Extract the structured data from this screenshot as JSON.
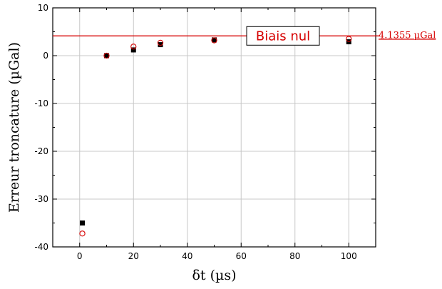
{
  "chart_data": {
    "type": "scatter",
    "title": "",
    "xlabel": "δt (µs)",
    "ylabel": "Erreur troncature (µGal)",
    "xlim": [
      -10,
      110
    ],
    "ylim": [
      -40,
      10
    ],
    "xticks": [
      0,
      20,
      40,
      60,
      80,
      100
    ],
    "yticks": [
      -40,
      -30,
      -20,
      -10,
      0,
      10
    ],
    "grid": true,
    "series": [
      {
        "marker": "filled-square",
        "color": "#000000",
        "points": [
          {
            "x": 1,
            "y": -35.0
          },
          {
            "x": 10,
            "y": 0.0
          },
          {
            "x": 20,
            "y": 1.2
          },
          {
            "x": 30,
            "y": 2.3
          },
          {
            "x": 50,
            "y": 3.3
          },
          {
            "x": 100,
            "y": 2.9
          }
        ]
      },
      {
        "marker": "open-circle",
        "color": "#d60000",
        "points": [
          {
            "x": 1,
            "y": -37.2
          },
          {
            "x": 10,
            "y": 0.0
          },
          {
            "x": 20,
            "y": 1.9
          },
          {
            "x": 30,
            "y": 2.7
          },
          {
            "x": 50,
            "y": 3.2
          },
          {
            "x": 100,
            "y": 3.5
          }
        ]
      }
    ],
    "reference_line": {
      "y": 4.1355,
      "color": "#d60000",
      "label": "Biais nul",
      "value_label": "4.1355 µGal"
    }
  }
}
